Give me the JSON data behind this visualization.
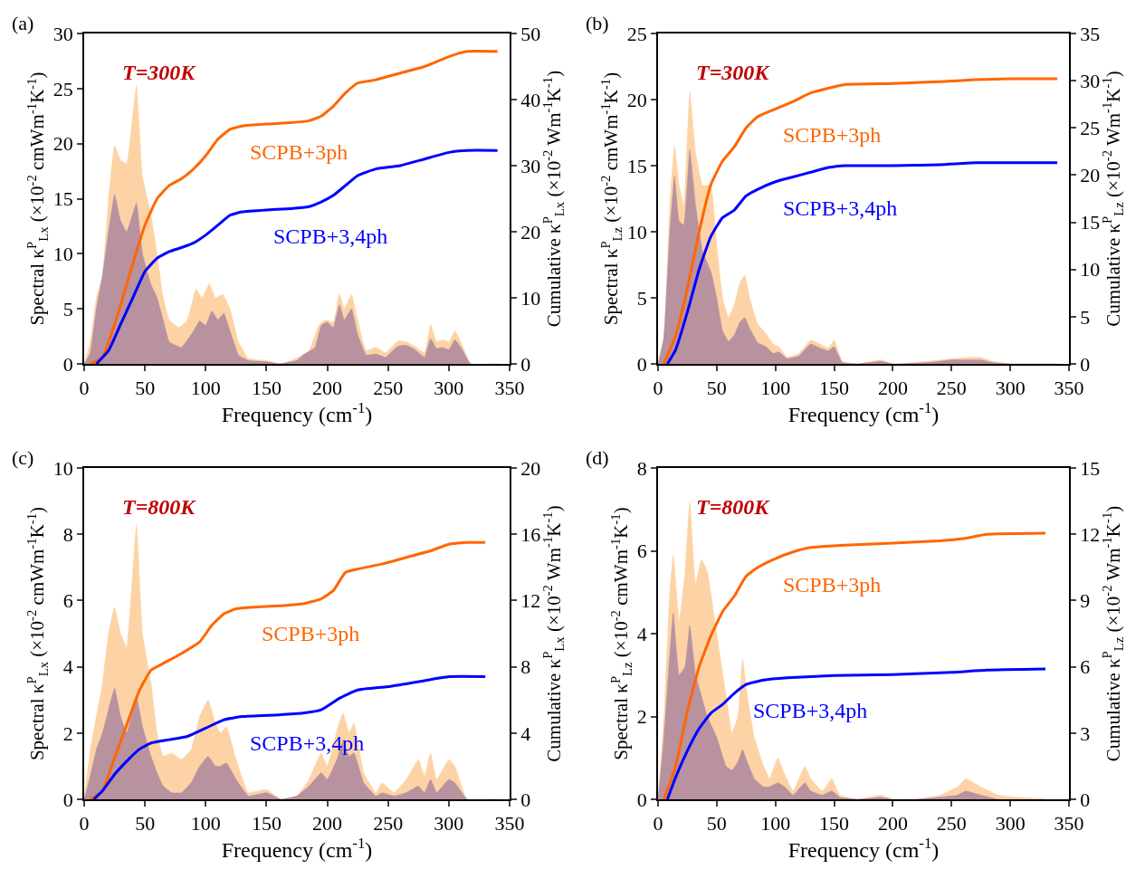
{
  "chart_data": [
    {
      "type": "area",
      "title": "(a)",
      "annotations": [
        "T=300K"
      ],
      "xlabel": "Frequency (cm$^{-1}$)",
      "ylabel": "Spectral κ$^{P}$$_{Lx}$ (×10$^{-2}$ cmWm$^{-1}$K$^{-1}$)",
      "y2label": "Cumulative κ$^{P}$$_{Lx}$ (×10$^{-2}$ Wm$^{-1}$K$^{-1}$)",
      "xlim": [
        0,
        350
      ],
      "xticks": [
        0,
        50,
        100,
        150,
        200,
        250,
        300,
        350
      ],
      "ylim": [
        0,
        30
      ],
      "yticks": [
        0,
        5,
        10,
        15,
        20,
        25,
        30
      ],
      "y2lim": [
        0,
        50
      ],
      "y2ticks": [
        0,
        10,
        20,
        30,
        40,
        50
      ],
      "series": [
        {
          "color": "#fdd3a6",
          "x": [
            0,
            5,
            10,
            15,
            20,
            25,
            30,
            35,
            43,
            48,
            55,
            60,
            65,
            70,
            78,
            85,
            92,
            97,
            103,
            108,
            114,
            120,
            127,
            135,
            150,
            162,
            170,
            178,
            185,
            193,
            198,
            205,
            210,
            214,
            220,
            225,
            232,
            240,
            248,
            258,
            265,
            272,
            280,
            285,
            290,
            295,
            300,
            305,
            310,
            318,
            340
          ],
          "values": [
            0,
            2,
            6,
            8,
            15,
            19.8,
            18.5,
            18.2,
            25.3,
            17,
            13.5,
            10,
            6,
            4,
            3.3,
            4,
            6.8,
            6,
            7.3,
            6,
            6.3,
            5,
            2,
            0.5,
            0.3,
            0,
            0.3,
            0.7,
            1.2,
            3.5,
            4,
            3.8,
            6.4,
            5,
            6.3,
            4,
            1.2,
            1.5,
            1,
            2.1,
            2,
            1.6,
            1,
            3.6,
            2,
            2.2,
            2,
            3,
            2,
            0,
            0
          ]
        },
        {
          "color": "#b8929f",
          "x": [
            0,
            5,
            10,
            15,
            20,
            25,
            30,
            35,
            43,
            48,
            55,
            60,
            65,
            70,
            80,
            90,
            95,
            100,
            105,
            110,
            115,
            120,
            127,
            135,
            150,
            160,
            175,
            180,
            190,
            195,
            200,
            205,
            210,
            214,
            220,
            225,
            232,
            240,
            248,
            258,
            265,
            272,
            280,
            285,
            290,
            295,
            300,
            305,
            310,
            318,
            340
          ],
          "values": [
            0,
            1,
            5,
            8,
            12,
            15.4,
            13,
            12,
            14.6,
            10,
            7.2,
            6,
            4,
            2,
            1.5,
            3,
            3.9,
            3.5,
            4.8,
            4,
            4.6,
            3,
            0.8,
            0.3,
            0.2,
            0,
            0.3,
            0.8,
            1.5,
            3.5,
            3.8,
            3.3,
            5.4,
            4,
            5,
            2.7,
            0.8,
            0.9,
            0.6,
            1.6,
            1.7,
            1.3,
            0.6,
            2.3,
            1.4,
            1.5,
            1.3,
            2.2,
            1.5,
            0,
            0
          ]
        },
        {
          "type": "line",
          "name": "SCPB+3ph",
          "axis": "y2",
          "color": "#ff6600",
          "x": [
            5,
            15,
            25,
            35,
            43,
            50,
            60,
            70,
            80,
            90,
            100,
            110,
            120,
            130,
            150,
            170,
            185,
            195,
            205,
            215,
            225,
            240,
            260,
            280,
            300,
            315,
            340
          ],
          "values": [
            0,
            1,
            6,
            12,
            17,
            21,
            25,
            27,
            28,
            29.5,
            31.5,
            34,
            35.5,
            36,
            36.3,
            36.5,
            36.8,
            37.5,
            39,
            41,
            42.5,
            43,
            44,
            45,
            46.5,
            47.3,
            47.3
          ]
        },
        {
          "type": "line",
          "name": "SCPB+3,4ph",
          "axis": "y2",
          "color": "#0000ff",
          "x": [
            10,
            20,
            30,
            40,
            50,
            60,
            70,
            80,
            90,
            100,
            110,
            120,
            130,
            150,
            170,
            185,
            195,
            205,
            215,
            225,
            240,
            260,
            280,
            300,
            315,
            340
          ],
          "values": [
            0,
            2,
            6,
            10,
            14,
            16,
            17,
            17.6,
            18.3,
            19.5,
            21,
            22.5,
            23,
            23.3,
            23.5,
            23.8,
            24.5,
            25.5,
            27,
            28.5,
            29.5,
            30,
            31,
            32,
            32.3,
            32.3
          ]
        }
      ]
    },
    {
      "type": "area",
      "title": "(b)",
      "annotations": [
        "T=300K"
      ],
      "xlabel": "Frequency (cm$^{-1}$)",
      "ylabel": "Spectral κ$^{P}$$_{Lz}$ (×10$^{-2}$ cmWm$^{-1}$K$^{-1}$)",
      "y2label": "Cumulative κ$^{P}$$_{Lz}$ (×10$^{-2}$ Wm$^{-1}$K$^{-1}$)",
      "xlim": [
        0,
        350
      ],
      "xticks": [
        0,
        50,
        100,
        150,
        200,
        250,
        300,
        350
      ],
      "ylim": [
        0,
        25
      ],
      "yticks": [
        0,
        5,
        10,
        15,
        20,
        25
      ],
      "y2lim": [
        0,
        35
      ],
      "y2ticks": [
        0,
        5,
        10,
        15,
        20,
        25,
        30,
        35
      ],
      "series": [
        {
          "color": "#fdd3a6",
          "x": [
            0,
            5,
            10,
            14,
            18,
            22,
            27,
            32,
            38,
            45,
            50,
            55,
            60,
            65,
            70,
            74,
            78,
            85,
            92,
            98,
            103,
            110,
            120,
            130,
            138,
            145,
            150,
            157,
            170,
            190,
            200,
            230,
            250,
            265,
            275,
            285,
            300,
            340
          ],
          "values": [
            0,
            2,
            12,
            16.5,
            13.5,
            12,
            20.6,
            16,
            13.5,
            13.5,
            9,
            5,
            3.5,
            4.5,
            6.2,
            6.7,
            5,
            3,
            2.3,
            1.5,
            1.3,
            0.5,
            0.8,
            1.8,
            1.5,
            1.2,
            1.8,
            0.2,
            0,
            0.3,
            0,
            0.2,
            0.4,
            0.5,
            0.5,
            0.2,
            0,
            0
          ]
        },
        {
          "color": "#b8929f",
          "x": [
            0,
            5,
            10,
            14,
            18,
            22,
            27,
            32,
            38,
            45,
            50,
            55,
            60,
            65,
            70,
            74,
            78,
            85,
            92,
            98,
            103,
            110,
            120,
            130,
            138,
            145,
            150,
            157,
            170,
            190,
            200,
            230,
            250,
            265,
            275,
            285,
            300,
            340
          ],
          "values": [
            0,
            2,
            10,
            14.2,
            10.8,
            10.5,
            16.2,
            12,
            8.5,
            7,
            5,
            2.5,
            1.7,
            2.2,
            3.2,
            3.5,
            2.7,
            1.6,
            1.3,
            0.8,
            0.9,
            0.4,
            0.6,
            1.5,
            1.2,
            1,
            1.3,
            0.1,
            0,
            0.2,
            0,
            0.1,
            0.3,
            0.3,
            0.3,
            0.1,
            0,
            0
          ]
        },
        {
          "type": "line",
          "name": "SCPB+3ph",
          "axis": "y2",
          "color": "#ff6600",
          "x": [
            5,
            15,
            25,
            35,
            45,
            55,
            65,
            75,
            85,
            100,
            115,
            130,
            145,
            160,
            200,
            240,
            270,
            300,
            340
          ],
          "values": [
            0,
            3,
            8,
            14,
            19,
            21.5,
            23,
            25,
            26.2,
            27,
            27.8,
            28.7,
            29.2,
            29.6,
            29.7,
            29.9,
            30.1,
            30.2,
            30.2
          ]
        },
        {
          "type": "line",
          "name": "SCPB+3,4ph",
          "axis": "y2",
          "color": "#0000ff",
          "x": [
            8,
            15,
            25,
            35,
            45,
            55,
            65,
            75,
            85,
            100,
            115,
            130,
            145,
            160,
            200,
            240,
            270,
            300,
            340
          ],
          "values": [
            0,
            1.5,
            5.5,
            10,
            13.5,
            15.5,
            16.3,
            17.8,
            18.5,
            19.3,
            19.8,
            20.3,
            20.8,
            21,
            21,
            21.1,
            21.3,
            21.3,
            21.3
          ]
        }
      ]
    },
    {
      "type": "area",
      "title": "(c)",
      "annotations": [
        "T=800K"
      ],
      "xlabel": "Frequency (cm$^{-1}$)",
      "ylabel": "Spectral κ$^{P}$$_{Lx}$ (×10$^{-2}$ cmWm$^{-1}$K$^{-1}$)",
      "y2label": "Cumulative κ$^{P}$$_{Lx}$ (×10$^{-2}$ Wm$^{-1}$K$^{-1}$)",
      "xlim": [
        0,
        350
      ],
      "xticks": [
        0,
        50,
        100,
        150,
        200,
        250,
        300,
        350
      ],
      "ylim": [
        0,
        10
      ],
      "yticks": [
        0,
        2,
        4,
        6,
        8,
        10
      ],
      "y2lim": [
        0,
        20
      ],
      "y2ticks": [
        0,
        4,
        8,
        12,
        16,
        20
      ],
      "series": [
        {
          "color": "#fdd3a6",
          "x": [
            0,
            5,
            10,
            15,
            20,
            25,
            30,
            35,
            43,
            48,
            55,
            60,
            65,
            72,
            80,
            88,
            95,
            102,
            108,
            112,
            117,
            125,
            135,
            150,
            162,
            175,
            185,
            195,
            200,
            208,
            213,
            218,
            222,
            230,
            240,
            245,
            255,
            265,
            275,
            280,
            285,
            290,
            300,
            305,
            315,
            340
          ],
          "values": [
            0,
            1.5,
            2.5,
            3.5,
            5,
            5.8,
            5,
            4.6,
            8.3,
            5,
            3.5,
            2,
            1.3,
            1.4,
            1.2,
            1.5,
            2.5,
            3,
            2.3,
            2,
            2.2,
            1.2,
            0.2,
            0.3,
            0,
            0.1,
            0.6,
            1.4,
            1,
            2.1,
            2.6,
            2,
            2.3,
            0.8,
            0.2,
            0.5,
            0.2,
            0.6,
            1.2,
            0.7,
            1.4,
            0.6,
            1.2,
            1,
            0,
            0
          ]
        },
        {
          "color": "#b8929f",
          "x": [
            0,
            5,
            10,
            15,
            20,
            25,
            30,
            35,
            43,
            48,
            55,
            60,
            65,
            72,
            80,
            88,
            95,
            102,
            108,
            112,
            117,
            125,
            135,
            150,
            162,
            175,
            185,
            195,
            200,
            208,
            213,
            218,
            222,
            230,
            240,
            245,
            255,
            265,
            275,
            280,
            285,
            290,
            300,
            305,
            315,
            340
          ],
          "values": [
            0,
            0.7,
            1.5,
            2,
            2.7,
            3.35,
            2.5,
            2,
            3.1,
            2.2,
            1.3,
            0.8,
            0.4,
            0.2,
            0.2,
            0.5,
            1,
            1.3,
            1,
            1,
            1.1,
            0.6,
            0.1,
            0.2,
            0,
            0.1,
            0.4,
            0.8,
            0.6,
            1.2,
            1.75,
            1.3,
            1.4,
            0.5,
            0.1,
            0.2,
            0.1,
            0.2,
            0.4,
            0.2,
            0.6,
            0.2,
            0.6,
            0.5,
            0,
            0
          ]
        },
        {
          "type": "line",
          "name": "SCPB+3ph",
          "axis": "y2",
          "color": "#ff6600",
          "x": [
            5,
            15,
            25,
            35,
            45,
            55,
            65,
            80,
            95,
            105,
            115,
            125,
            140,
            165,
            180,
            195,
            205,
            215,
            225,
            245,
            265,
            285,
            300,
            315,
            330
          ],
          "values": [
            0,
            0.5,
            2.5,
            4.5,
            6.5,
            7.8,
            8.2,
            8.8,
            9.5,
            10.5,
            11.2,
            11.5,
            11.6,
            11.7,
            11.8,
            12.1,
            12.6,
            13.7,
            13.9,
            14.2,
            14.6,
            15,
            15.4,
            15.5,
            15.5
          ]
        },
        {
          "type": "line",
          "name": "SCPB+3,4ph",
          "axis": "y2",
          "color": "#0000ff",
          "x": [
            8,
            15,
            25,
            35,
            45,
            55,
            70,
            85,
            100,
            115,
            130,
            160,
            180,
            195,
            210,
            225,
            250,
            275,
            300,
            330
          ],
          "values": [
            0,
            0.5,
            1.5,
            2.3,
            3,
            3.4,
            3.6,
            3.8,
            4.3,
            4.8,
            5,
            5.1,
            5.2,
            5.4,
            6.1,
            6.6,
            6.8,
            7.1,
            7.4,
            7.4
          ]
        }
      ]
    },
    {
      "type": "area",
      "title": "(d)",
      "annotations": [
        "T=800K"
      ],
      "xlabel": "Frequency (cm$^{-1}$)",
      "ylabel": "Spectral κ$^{P}$$_{Lz}$ (×10$^{-2}$ cmWm$^{-1}$K$^{-1}$)",
      "y2label": "Cumulative κ$^{P}$$_{Lz}$ (×10$^{-2}$ Wm$^{-1}$K$^{-1}$)",
      "xlim": [
        0,
        350
      ],
      "xticks": [
        0,
        50,
        100,
        150,
        200,
        250,
        300,
        350
      ],
      "ylim": [
        0,
        8
      ],
      "yticks": [
        0,
        2,
        4,
        6,
        8
      ],
      "y2lim": [
        0,
        15
      ],
      "y2ticks": [
        0,
        3,
        6,
        9,
        12,
        15
      ],
      "series": [
        {
          "color": "#fdd3a6",
          "x": [
            0,
            5,
            10,
            13,
            18,
            23,
            27,
            32,
            37,
            42,
            50,
            58,
            63,
            68,
            72,
            76,
            82,
            90,
            95,
            102,
            108,
            115,
            125,
            130,
            140,
            148,
            155,
            170,
            190,
            200,
            220,
            240,
            255,
            262,
            275,
            290,
            330
          ],
          "values": [
            0,
            2,
            5,
            5.9,
            4.3,
            5.5,
            7.2,
            5.2,
            5.8,
            5.5,
            4,
            2.5,
            1.6,
            2,
            3.4,
            2.5,
            1.5,
            0.8,
            0.5,
            1,
            0.6,
            0.2,
            0.8,
            0.5,
            0.2,
            0.5,
            0.1,
            0,
            0.1,
            0,
            0,
            0.1,
            0.3,
            0.5,
            0.3,
            0.1,
            0
          ]
        },
        {
          "color": "#b8929f",
          "x": [
            0,
            5,
            10,
            13,
            18,
            23,
            27,
            32,
            37,
            42,
            50,
            58,
            63,
            68,
            72,
            76,
            82,
            90,
            95,
            102,
            108,
            115,
            125,
            130,
            140,
            148,
            155,
            170,
            190,
            200,
            220,
            240,
            255,
            262,
            275,
            290,
            330
          ],
          "values": [
            0,
            1.5,
            3.5,
            4.5,
            3,
            3.2,
            4.2,
            3,
            2.5,
            2,
            1.5,
            0.8,
            0.7,
            0.9,
            1.2,
            0.9,
            0.5,
            0.3,
            0.3,
            0.4,
            0.3,
            0.1,
            0.4,
            0.2,
            0.1,
            0.2,
            0.05,
            0,
            0.05,
            0,
            0,
            0.05,
            0.1,
            0.2,
            0.1,
            0,
            0
          ]
        },
        {
          "type": "line",
          "name": "SCPB+3ph",
          "axis": "y2",
          "color": "#ff6600",
          "x": [
            5,
            15,
            25,
            35,
            45,
            55,
            65,
            75,
            85,
            100,
            115,
            130,
            155,
            200,
            240,
            260,
            280,
            330
          ],
          "values": [
            0,
            1.5,
            4,
            6,
            7.4,
            8.5,
            9.2,
            10.1,
            10.5,
            10.9,
            11.2,
            11.4,
            11.5,
            11.6,
            11.7,
            11.8,
            12,
            12.05
          ]
        },
        {
          "type": "line",
          "name": "SCPB+3,4ph",
          "axis": "y2",
          "color": "#0000ff",
          "x": [
            8,
            15,
            25,
            35,
            45,
            55,
            65,
            75,
            90,
            110,
            150,
            200,
            250,
            280,
            330
          ],
          "values": [
            0,
            1,
            2.2,
            3.2,
            3.9,
            4.3,
            4.8,
            5.2,
            5.4,
            5.5,
            5.6,
            5.65,
            5.75,
            5.85,
            5.9
          ]
        }
      ]
    }
  ]
}
